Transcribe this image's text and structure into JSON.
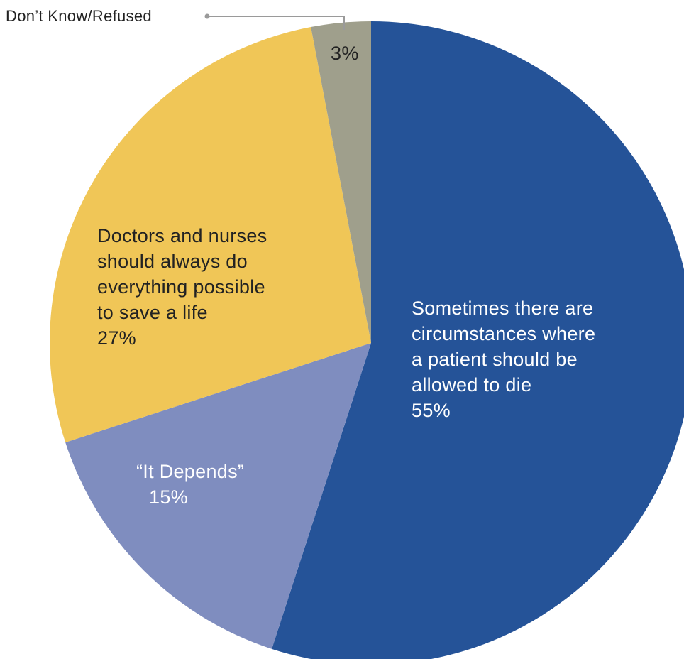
{
  "chart_data": {
    "type": "pie",
    "slices": [
      {
        "label_lines": [
          "Sometimes there are",
          "circumstances where",
          "a patient should be",
          "allowed to die"
        ],
        "pct_label": "55%",
        "value": 55,
        "color": "#255398",
        "text_color": "#ffffff"
      },
      {
        "label_lines": [
          "“It Depends”"
        ],
        "pct_label": "15%",
        "value": 15,
        "color": "#7f8dbf",
        "text_color": "#ffffff"
      },
      {
        "label_lines": [
          "Doctors and nurses",
          "should always do",
          "everything possible",
          "to save a life"
        ],
        "pct_label": "27%",
        "value": 27,
        "color": "#f0c657",
        "text_color": "#222222"
      },
      {
        "label_lines": [],
        "pct_label": "3%",
        "value": 3,
        "color": "#9f9f8c",
        "text_color": "#222222",
        "callout": "Don’t Know/Refused"
      }
    ],
    "start_angle_deg": 0,
    "direction": "clockwise"
  }
}
